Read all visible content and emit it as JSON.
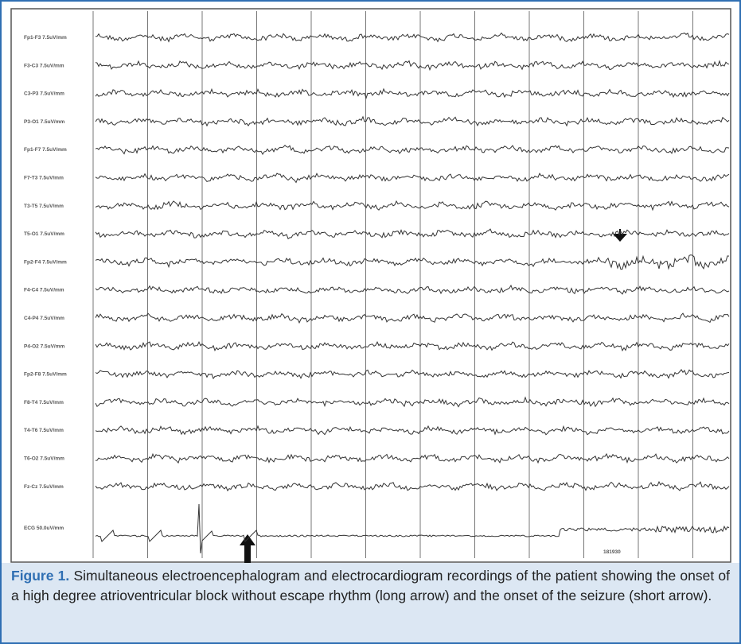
{
  "figure": {
    "channels": [
      "Fp1-F3 7.5uV/mm",
      "F3-C3 7.5uV/mm",
      "C3-P3 7.5uV/mm",
      "P3-O1 7.5uV/mm",
      "Fp1-F7 7.5uV/mm",
      "F7-T3 7.5uV/mm",
      "T3-T5 7.5uV/mm",
      "T5-O1 7.5uV/mm",
      "Fp2-F4 7.5uV/mm",
      "F4-C4 7.5uV/mm",
      "C4-P4 7.5uV/mm",
      "P4-O2 7.5uV/mm",
      "Fp2-F8 7.5uV/mm",
      "F8-T4 7.5uV/mm",
      "T4-T6 7.5uV/mm",
      "T6-O2 7.5uV/mm",
      "Fz-Cz 7.5uV/mm",
      "ECG 50.0uV/mm"
    ],
    "timestamp": "181930"
  },
  "caption": {
    "label": "Figure 1.",
    "text": "Simultaneous electroencephalogram and electrocardiogram recordings of the patient showing the onset of a high degree atrioventricular block without escape rhythm (long arrow) and the onset of the seizure (short arrow)."
  }
}
